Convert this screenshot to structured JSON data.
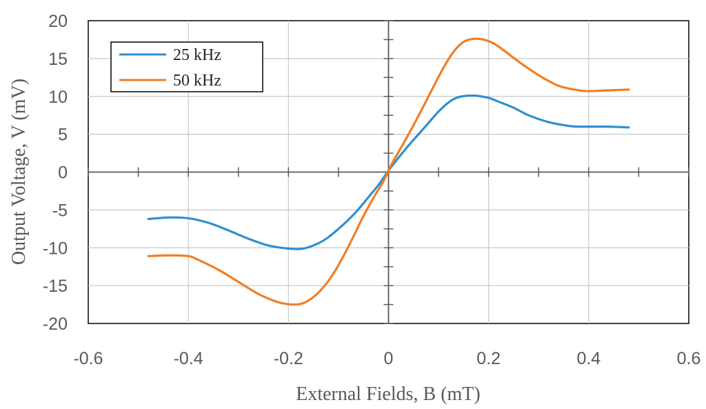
{
  "chart_data": {
    "type": "line",
    "title": "",
    "xlabel": "External  Fields,  B (mT)",
    "ylabel": "Output  Voltage,  V  (mV)",
    "xlim": [
      -0.6,
      0.6
    ],
    "ylim": [
      -20,
      20
    ],
    "xticks": [
      -0.6,
      -0.4,
      -0.2,
      0,
      0.2,
      0.4,
      0.6
    ],
    "xtick_labels": [
      "-0.6",
      "-0.4",
      "-0.2",
      "0",
      "0.2",
      "0.4",
      "0.6"
    ],
    "yticks": [
      -20,
      -15,
      -10,
      -5,
      0,
      5,
      10,
      15,
      20
    ],
    "ytick_labels": [
      "-20",
      "-15",
      "-10",
      "-5",
      "0",
      "5",
      "10",
      "15",
      "20"
    ],
    "grid": true,
    "legend_position": "top-left",
    "series": [
      {
        "name": "25 kHz",
        "color": "#2e8fcf",
        "x": [
          -0.48,
          -0.44,
          -0.4,
          -0.36,
          -0.32,
          -0.28,
          -0.24,
          -0.2,
          -0.17,
          -0.14,
          -0.12,
          -0.1,
          -0.08,
          -0.06,
          -0.04,
          -0.02,
          0,
          0.02,
          0.04,
          0.06,
          0.08,
          0.1,
          0.12,
          0.14,
          0.17,
          0.2,
          0.22,
          0.25,
          0.28,
          0.32,
          0.36,
          0.38,
          0.4,
          0.44,
          0.48
        ],
        "y": [
          -6.2,
          -6.0,
          -6.1,
          -6.7,
          -7.7,
          -8.8,
          -9.7,
          -10.1,
          -10.1,
          -9.4,
          -8.6,
          -7.5,
          -6.3,
          -4.9,
          -3.3,
          -1.7,
          0.2,
          1.9,
          3.5,
          5.0,
          6.5,
          8.0,
          9.2,
          9.9,
          10.1,
          9.8,
          9.3,
          8.5,
          7.5,
          6.6,
          6.1,
          6.0,
          6.0,
          6.0,
          5.9
        ]
      },
      {
        "name": "50 kHz",
        "color": "#f07e26",
        "x": [
          -0.48,
          -0.44,
          -0.4,
          -0.38,
          -0.34,
          -0.3,
          -0.26,
          -0.22,
          -0.19,
          -0.17,
          -0.15,
          -0.13,
          -0.11,
          -0.09,
          -0.07,
          -0.05,
          -0.03,
          -0.01,
          0,
          0.01,
          0.03,
          0.05,
          0.07,
          0.09,
          0.11,
          0.13,
          0.15,
          0.17,
          0.19,
          0.21,
          0.23,
          0.26,
          0.3,
          0.34,
          0.38,
          0.4,
          0.44,
          0.48
        ],
        "y": [
          -11.1,
          -11.0,
          -11.1,
          -11.6,
          -12.9,
          -14.5,
          -16.1,
          -17.2,
          -17.5,
          -17.3,
          -16.5,
          -15.2,
          -13.4,
          -11.1,
          -8.5,
          -5.8,
          -3.4,
          -1.2,
          0.2,
          1.5,
          3.8,
          6.2,
          8.7,
          11.3,
          13.8,
          15.9,
          17.2,
          17.6,
          17.5,
          17.0,
          16.1,
          14.6,
          12.8,
          11.4,
          10.8,
          10.7,
          10.8,
          10.9
        ]
      }
    ]
  }
}
